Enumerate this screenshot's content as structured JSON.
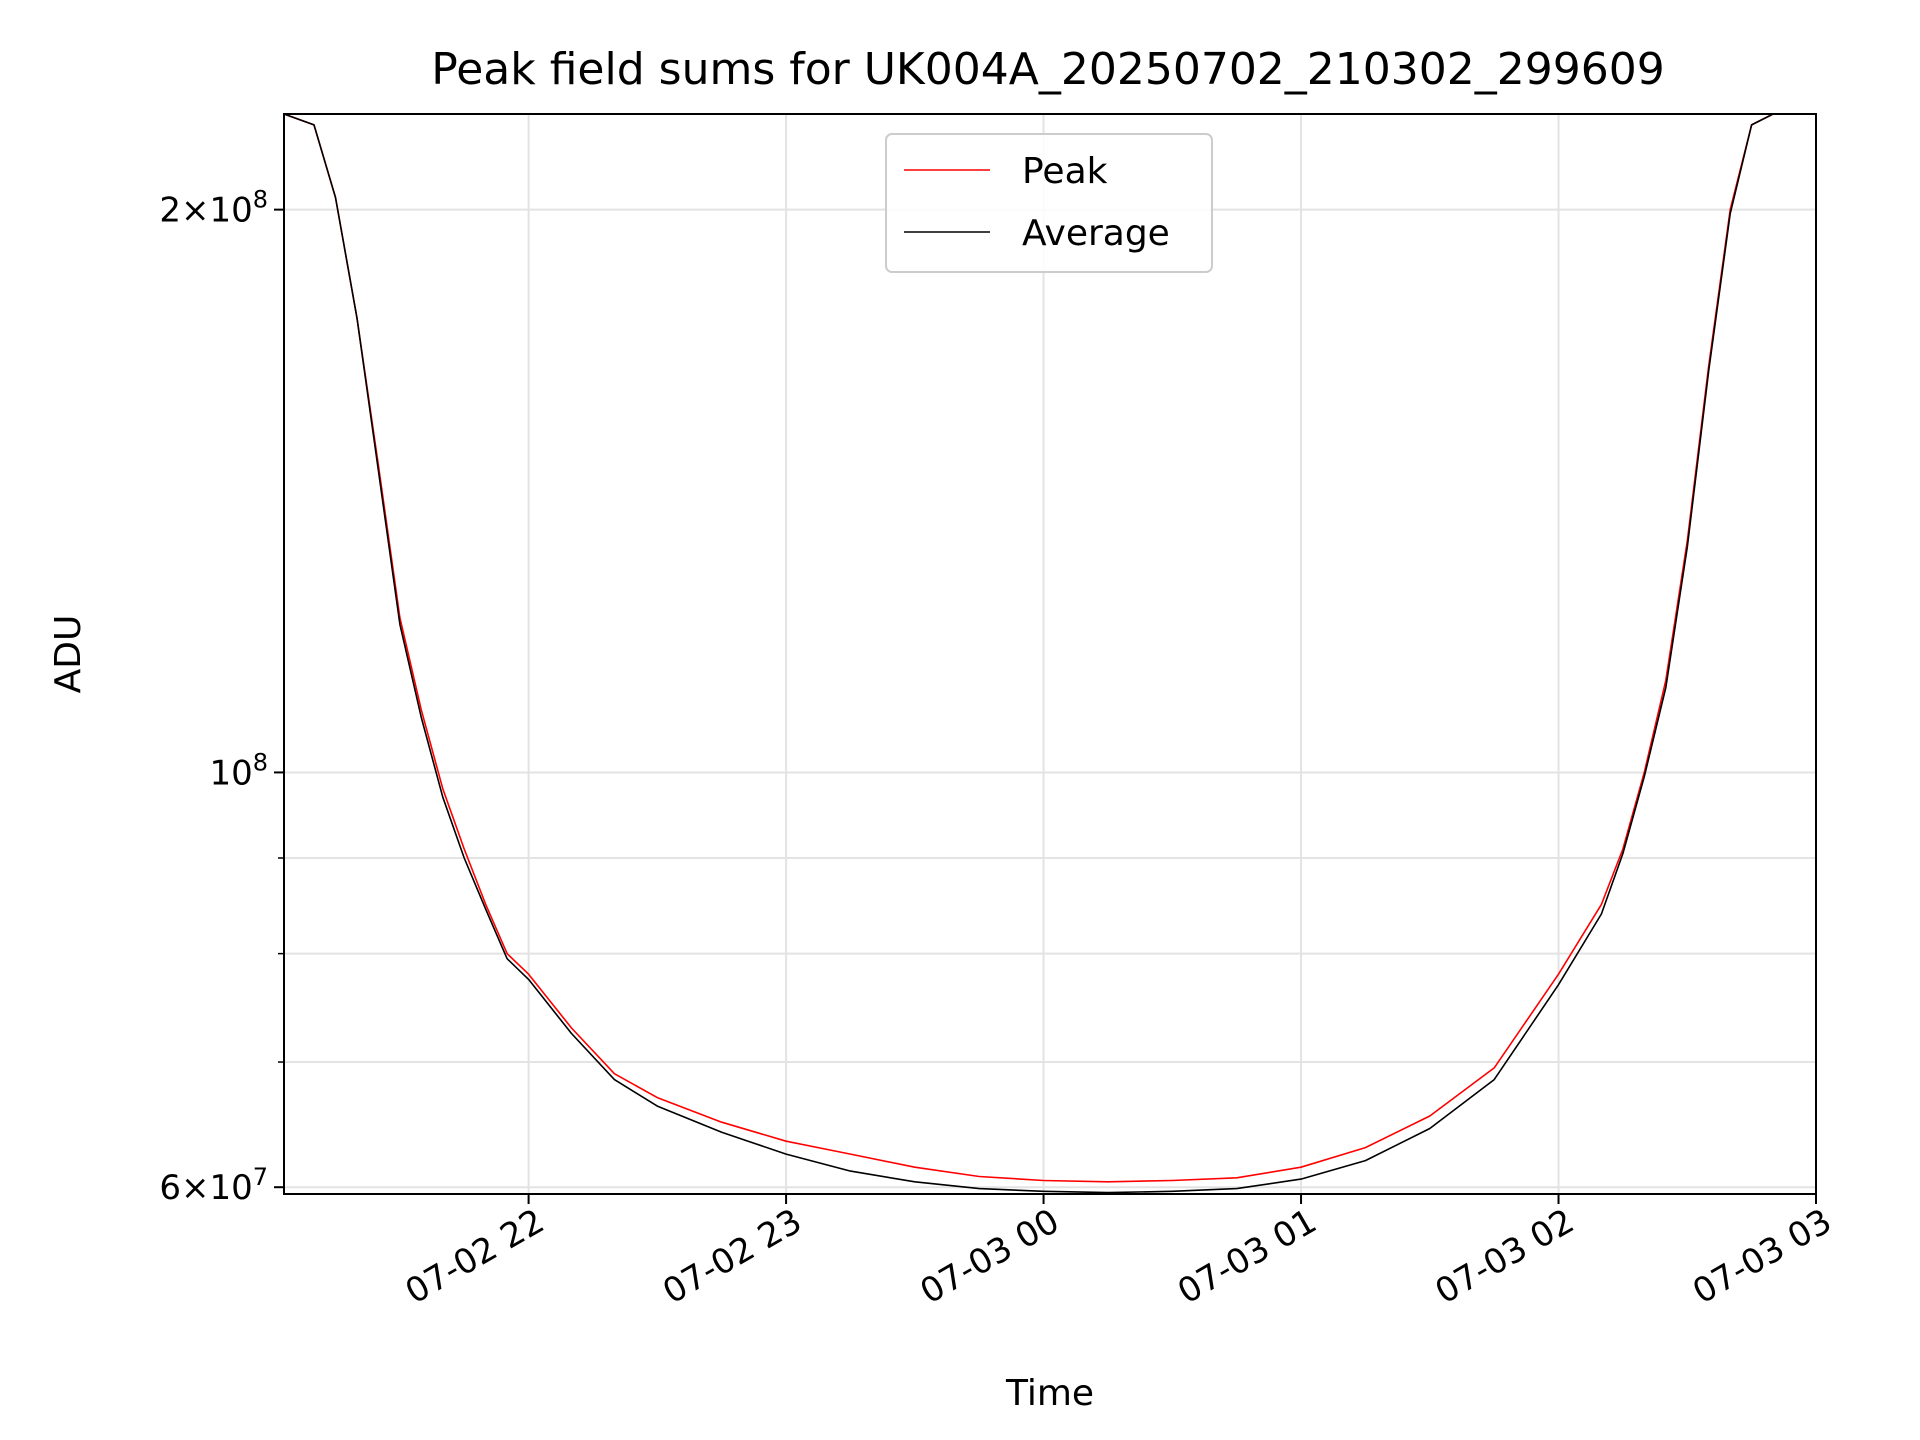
{
  "chart_data": {
    "type": "line",
    "title": "Peak field sums for UK004A_20250702_210302_299609",
    "xlabel": "Time",
    "ylabel": "ADU",
    "yscale": "log",
    "grid": true,
    "legend_position": "upper center",
    "xlim": [
      "2025-07-02 21:03",
      "2025-07-03 03:00"
    ],
    "ylim": [
      59500000,
      225000000
    ],
    "x_ticks": [
      {
        "value": "2025-07-02 22:00",
        "label": "07-02 22"
      },
      {
        "value": "2025-07-02 23:00",
        "label": "07-02 23"
      },
      {
        "value": "2025-07-03 00:00",
        "label": "07-03 00"
      },
      {
        "value": "2025-07-03 01:00",
        "label": "07-03 01"
      },
      {
        "value": "2025-07-03 02:00",
        "label": "07-03 02"
      },
      {
        "value": "2025-07-03 03:00",
        "label": "07-03 03"
      }
    ],
    "y_major_ticks": [
      {
        "value": 200000000,
        "mantissa": "2",
        "exponent": "8"
      },
      {
        "value": 100000000,
        "mantissa": "",
        "exponent": "8"
      },
      {
        "value": 60000000,
        "mantissa": "6",
        "exponent": "7"
      }
    ],
    "y_minor_ticks": [
      70000000,
      80000000,
      90000000
    ],
    "series": [
      {
        "name": "Peak",
        "color": "#ff0000",
        "x": [
          "2025-07-02 21:03",
          "2025-07-02 21:10",
          "2025-07-02 21:15",
          "2025-07-02 21:20",
          "2025-07-02 21:25",
          "2025-07-02 21:30",
          "2025-07-02 21:35",
          "2025-07-02 21:40",
          "2025-07-02 21:45",
          "2025-07-02 21:50",
          "2025-07-02 21:55",
          "2025-07-02 22:00",
          "2025-07-02 22:10",
          "2025-07-02 22:20",
          "2025-07-02 22:30",
          "2025-07-02 22:45",
          "2025-07-02 23:00",
          "2025-07-02 23:15",
          "2025-07-02 23:30",
          "2025-07-02 23:45",
          "2025-07-03 00:00",
          "2025-07-03 00:15",
          "2025-07-03 00:30",
          "2025-07-03 00:45",
          "2025-07-03 01:00",
          "2025-07-03 01:15",
          "2025-07-03 01:30",
          "2025-07-03 01:45",
          "2025-07-03 02:00",
          "2025-07-03 02:10",
          "2025-07-03 02:15",
          "2025-07-03 02:20",
          "2025-07-03 02:25",
          "2025-07-03 02:30",
          "2025-07-03 02:35",
          "2025-07-03 02:40",
          "2025-07-03 02:45",
          "2025-07-03 02:50"
        ],
        "values": [
          225000000,
          222000000,
          203000000,
          175000000,
          146000000,
          121000000,
          108000000,
          98000000,
          91000000,
          85000000,
          80000000,
          78000000,
          73000000,
          69000000,
          67000000,
          65000000,
          63500000,
          62500000,
          61500000,
          60800000,
          60500000,
          60400000,
          60500000,
          60700000,
          61500000,
          63000000,
          65500000,
          69500000,
          78000000,
          85000000,
          91000000,
          100000000,
          112000000,
          133000000,
          165000000,
          200000000,
          222000000,
          225000000
        ]
      },
      {
        "name": "Average",
        "color": "#000000",
        "x": [
          "2025-07-02 21:03",
          "2025-07-02 21:10",
          "2025-07-02 21:15",
          "2025-07-02 21:20",
          "2025-07-02 21:25",
          "2025-07-02 21:30",
          "2025-07-02 21:35",
          "2025-07-02 21:40",
          "2025-07-02 21:45",
          "2025-07-02 21:50",
          "2025-07-02 21:55",
          "2025-07-02 22:00",
          "2025-07-02 22:10",
          "2025-07-02 22:20",
          "2025-07-02 22:30",
          "2025-07-02 22:45",
          "2025-07-02 23:00",
          "2025-07-02 23:15",
          "2025-07-02 23:30",
          "2025-07-02 23:45",
          "2025-07-03 00:00",
          "2025-07-03 00:15",
          "2025-07-03 00:30",
          "2025-07-03 00:45",
          "2025-07-03 01:00",
          "2025-07-03 01:15",
          "2025-07-03 01:30",
          "2025-07-03 01:45",
          "2025-07-03 02:00",
          "2025-07-03 02:10",
          "2025-07-03 02:15",
          "2025-07-03 02:20",
          "2025-07-03 02:25",
          "2025-07-03 02:30",
          "2025-07-03 02:35",
          "2025-07-03 02:40",
          "2025-07-03 02:45",
          "2025-07-03 02:50"
        ],
        "values": [
          225000000,
          222000000,
          203000000,
          175000000,
          145000000,
          120000000,
          107000000,
          97000000,
          90000000,
          84500000,
          79500000,
          77500000,
          72500000,
          68500000,
          66300000,
          64200000,
          62500000,
          61200000,
          60400000,
          59900000,
          59700000,
          59600000,
          59700000,
          59900000,
          60600000,
          62000000,
          64500000,
          68500000,
          77000000,
          84000000,
          90500000,
          99500000,
          111000000,
          132000000,
          164000000,
          199000000,
          222000000,
          225000000
        ]
      }
    ]
  }
}
